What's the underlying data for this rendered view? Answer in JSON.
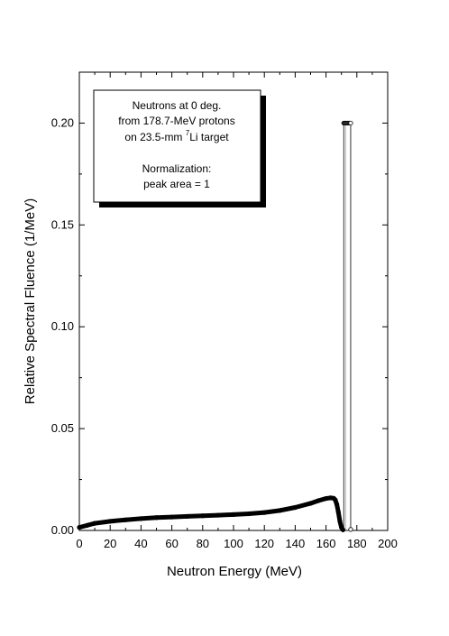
{
  "chart_data": {
    "type": "line",
    "xlabel": "Neutron Energy (MeV)",
    "ylabel": "Relative Spectral Fluence (1/MeV)",
    "xlim": [
      0,
      200
    ],
    "ylim": [
      0,
      0.225
    ],
    "x_ticks": [
      0,
      20,
      40,
      60,
      80,
      100,
      120,
      140,
      160,
      180,
      200
    ],
    "y_ticks": [
      0.0,
      0.05,
      0.1,
      0.15,
      0.2
    ],
    "y_tick_labels": [
      "0.00",
      "0.05",
      "0.10",
      "0.15",
      "0.20"
    ],
    "x_tick_labels": [
      "0",
      "20",
      "40",
      "60",
      "80",
      "100",
      "120",
      "140",
      "160",
      "180",
      "200"
    ],
    "grid": false,
    "annotation": {
      "line1": "Neutrons at 0 deg.",
      "line2": "from 178.7-MeV protons",
      "line3_pre": "on 23.5-mm ",
      "line3_sup": "7",
      "line3_post": "Li target",
      "line4": "Normalization:",
      "line5": "peak area = 1"
    },
    "series": [
      {
        "style": "filled-markers",
        "x": [
          0,
          5,
          10,
          20,
          30,
          40,
          50,
          60,
          70,
          80,
          90,
          100,
          110,
          120,
          130,
          140,
          150,
          155,
          160,
          163,
          165,
          166,
          167,
          168,
          169,
          170,
          171
        ],
        "y": [
          0.0015,
          0.0025,
          0.0035,
          0.0045,
          0.0052,
          0.0058,
          0.0063,
          0.0066,
          0.0069,
          0.0072,
          0.0075,
          0.0078,
          0.0082,
          0.0088,
          0.0098,
          0.0113,
          0.0133,
          0.0146,
          0.0157,
          0.016,
          0.0158,
          0.015,
          0.0128,
          0.009,
          0.0045,
          0.0015,
          0.0003
        ]
      },
      {
        "style": "open-markers-peak",
        "x": [
          171.5,
          172,
          172.5,
          173,
          173.5,
          174,
          174.5,
          175,
          175.5,
          176
        ],
        "y": [
          0.2,
          0.2,
          0.2,
          0.2,
          0.2,
          0.2,
          0.2,
          0.2,
          0.2,
          0.2
        ],
        "x_edges": [
          171.5,
          176
        ],
        "base": 0.0005
      }
    ]
  }
}
